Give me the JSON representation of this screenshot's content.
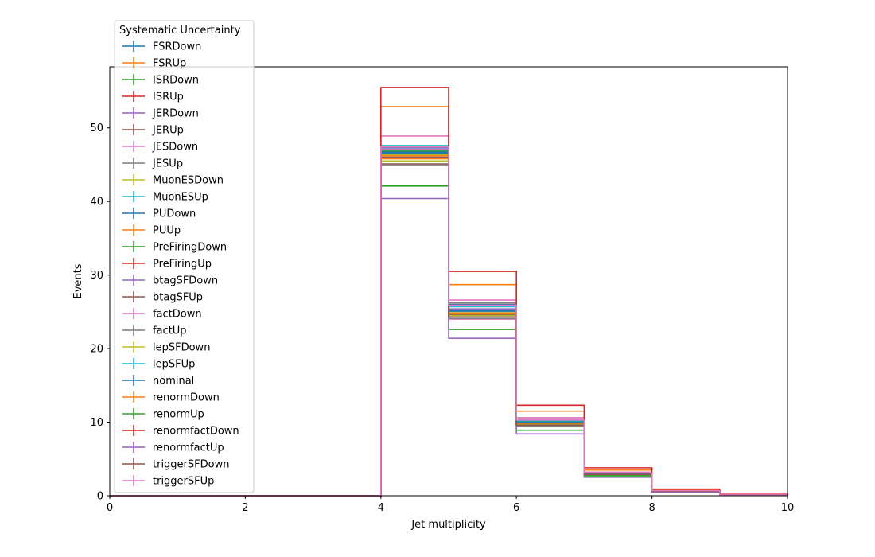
{
  "chart_data": {
    "type": "line",
    "title": "",
    "xlabel": "Jet multiplicity",
    "ylabel": "Events",
    "xlim": [
      0,
      10
    ],
    "ylim": [
      0,
      58.3
    ],
    "xticks": [
      0,
      2,
      4,
      6,
      8,
      10
    ],
    "yticks": [
      0,
      10,
      20,
      30,
      40,
      50
    ],
    "grid": false,
    "legend": {
      "title": "Systematic Uncertainty",
      "placement": "top-left"
    },
    "bin_edges": [
      0,
      1,
      2,
      3,
      4,
      5,
      6,
      7,
      8,
      9,
      10
    ],
    "series": [
      {
        "name": "FSRDown",
        "color": "#1f77b4",
        "values": [
          0,
          0,
          0,
          0,
          47.3,
          26.0,
          10.2,
          3.1,
          0.7,
          0.1
        ]
      },
      {
        "name": "FSRUp",
        "color": "#ff7f0e",
        "values": [
          0,
          0,
          0,
          0,
          45.8,
          24.6,
          9.9,
          3.0,
          0.7,
          0.1
        ]
      },
      {
        "name": "ISRDown",
        "color": "#2ca02c",
        "values": [
          0,
          0,
          0,
          0,
          46.8,
          25.2,
          10.0,
          3.0,
          0.7,
          0.1
        ]
      },
      {
        "name": "ISRUp",
        "color": "#d62728",
        "values": [
          0,
          0,
          0,
          0,
          46.6,
          25.1,
          10.0,
          3.0,
          0.7,
          0.1
        ]
      },
      {
        "name": "JERDown",
        "color": "#9467bd",
        "values": [
          0,
          0,
          0,
          0,
          46.5,
          25.0,
          9.9,
          3.0,
          0.7,
          0.1
        ]
      },
      {
        "name": "JERUp",
        "color": "#8c564b",
        "values": [
          0,
          0,
          0,
          0,
          46.5,
          25.0,
          9.9,
          3.0,
          0.7,
          0.1
        ]
      },
      {
        "name": "JESDown",
        "color": "#e377c2",
        "values": [
          0,
          0,
          0,
          0,
          47.1,
          24.0,
          9.6,
          2.9,
          0.6,
          0.1
        ]
      },
      {
        "name": "JESUp",
        "color": "#7f7f7f",
        "values": [
          0,
          0,
          0,
          0,
          46.3,
          26.2,
          10.6,
          3.2,
          0.7,
          0.1
        ]
      },
      {
        "name": "MuonESDown",
        "color": "#bcbd22",
        "values": [
          0,
          0,
          0,
          0,
          46.4,
          25.0,
          9.9,
          3.0,
          0.7,
          0.1
        ]
      },
      {
        "name": "MuonESUp",
        "color": "#17becf",
        "values": [
          0,
          0,
          0,
          0,
          46.6,
          25.1,
          10.0,
          3.0,
          0.7,
          0.1
        ]
      },
      {
        "name": "PUDown",
        "color": "#1f77b4",
        "values": [
          0,
          0,
          0,
          0,
          46.7,
          25.2,
          10.0,
          3.0,
          0.7,
          0.1
        ]
      },
      {
        "name": "PUUp",
        "color": "#ff7f0e",
        "values": [
          0,
          0,
          0,
          0,
          46.2,
          24.8,
          9.9,
          3.0,
          0.7,
          0.1
        ]
      },
      {
        "name": "PreFiringDown",
        "color": "#2ca02c",
        "values": [
          0,
          0,
          0,
          0,
          46.9,
          25.3,
          10.1,
          3.0,
          0.7,
          0.1
        ]
      },
      {
        "name": "PreFiringUp",
        "color": "#d62728",
        "values": [
          0,
          0,
          0,
          0,
          46.0,
          24.7,
          9.8,
          2.9,
          0.7,
          0.1
        ]
      },
      {
        "name": "btagSFDown",
        "color": "#9467bd",
        "values": [
          0,
          0,
          0,
          0,
          47.0,
          25.4,
          10.2,
          3.1,
          0.7,
          0.1
        ]
      },
      {
        "name": "btagSFUp",
        "color": "#8c564b",
        "values": [
          0,
          0,
          0,
          0,
          46.0,
          24.6,
          9.7,
          2.9,
          0.6,
          0.1
        ]
      },
      {
        "name": "factDown",
        "color": "#e377c2",
        "values": [
          0,
          0,
          0,
          0,
          48.9,
          26.6,
          10.6,
          3.2,
          0.7,
          0.1
        ]
      },
      {
        "name": "factUp",
        "color": "#7f7f7f",
        "values": [
          0,
          0,
          0,
          0,
          44.9,
          24.1,
          9.5,
          2.8,
          0.6,
          0.1
        ]
      },
      {
        "name": "lepSFDown",
        "color": "#bcbd22",
        "values": [
          0,
          0,
          0,
          0,
          45.5,
          24.5,
          9.7,
          2.9,
          0.6,
          0.1
        ]
      },
      {
        "name": "lepSFUp",
        "color": "#17becf",
        "values": [
          0,
          0,
          0,
          0,
          47.6,
          25.7,
          10.2,
          3.1,
          0.7,
          0.1
        ]
      },
      {
        "name": "nominal",
        "color": "#1f77b4",
        "values": [
          0,
          0,
          0,
          0,
          46.6,
          25.1,
          10.0,
          3.0,
          0.7,
          0.1
        ]
      },
      {
        "name": "renormDown",
        "color": "#ff7f0e",
        "values": [
          0,
          0,
          0,
          0,
          52.9,
          28.7,
          11.5,
          3.5,
          0.8,
          0.1
        ]
      },
      {
        "name": "renormUp",
        "color": "#2ca02c",
        "values": [
          0,
          0,
          0,
          0,
          42.1,
          22.6,
          8.9,
          2.7,
          0.6,
          0.1
        ]
      },
      {
        "name": "renormfactDown",
        "color": "#d62728",
        "values": [
          0,
          0,
          0,
          0,
          55.5,
          30.5,
          12.3,
          3.8,
          0.9,
          0.2
        ]
      },
      {
        "name": "renormfactUp",
        "color": "#9467bd",
        "values": [
          0,
          0,
          0,
          0,
          40.4,
          21.4,
          8.4,
          2.5,
          0.5,
          0.1
        ]
      },
      {
        "name": "triggerSFDown",
        "color": "#8c564b",
        "values": [
          0,
          0,
          0,
          0,
          45.1,
          24.3,
          9.6,
          2.9,
          0.6,
          0.1
        ]
      },
      {
        "name": "triggerSFUp",
        "color": "#e377c2",
        "values": [
          0,
          0,
          0,
          0,
          47.4,
          25.9,
          10.3,
          3.1,
          0.7,
          0.1
        ]
      }
    ]
  }
}
